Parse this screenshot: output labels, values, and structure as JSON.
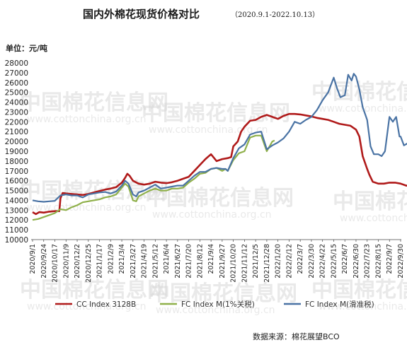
{
  "chart_data": {
    "type": "line",
    "title": "国内外棉花现货价格对比",
    "subtitle": "（2020.9.1-2022.10.13）",
    "unit_label": "单位：元/吨",
    "source": "数据来源：棉花展望BCO",
    "watermark": {
      "text": "中国棉花信息网",
      "url": "www.cottonchina.org.cn"
    },
    "ylim": [
      10000,
      28000
    ],
    "y_ticks": [
      10000,
      11000,
      12000,
      13000,
      14000,
      15000,
      16000,
      17000,
      18000,
      19000,
      20000,
      21000,
      22000,
      23000,
      24000,
      25000,
      26000,
      27000,
      28000
    ],
    "x_ticks": [
      "2020/9/1",
      "2020/9/24",
      "2020/10/17",
      "2020/11/9",
      "2020/12/2",
      "2020/12/25",
      "2021/1/17",
      "2021/2/9",
      "2021/3/4",
      "2021/3/27",
      "2021/4/19",
      "2021/5/12",
      "2021/6/4",
      "2021/6/27",
      "2021/7/20",
      "2021/8/12",
      "2021/9/4",
      "2021/9/27",
      "2021/10/20",
      "2021/11/12",
      "2021/12/5",
      "2021/12/28",
      "2022/1/20",
      "2022/2/12",
      "2022/3/7",
      "2022/3/30",
      "2022/4/22",
      "2022/5/15",
      "2022/6/7",
      "2022/6/30",
      "2022/7/23",
      "2022/8/15",
      "2022/9/7",
      "2022/9/30"
    ],
    "legend_position": "bottom",
    "series": [
      {
        "name": "CC Index 3128B",
        "color": "#b01a1a",
        "points": [
          [
            0,
            12800
          ],
          [
            0.3,
            12600
          ],
          [
            0.6,
            12800
          ],
          [
            1,
            12750
          ],
          [
            1.5,
            12850
          ],
          [
            2,
            12900
          ],
          [
            2.4,
            12900
          ],
          [
            2.5,
            14200
          ],
          [
            2.7,
            14750
          ],
          [
            3,
            14700
          ],
          [
            3.5,
            14650
          ],
          [
            4,
            14600
          ],
          [
            4.5,
            14550
          ],
          [
            5,
            14650
          ],
          [
            5.5,
            14800
          ],
          [
            6,
            14950
          ],
          [
            6.5,
            15100
          ],
          [
            7,
            15200
          ],
          [
            7.5,
            15350
          ],
          [
            8,
            15800
          ],
          [
            8.3,
            16300
          ],
          [
            8.5,
            16700
          ],
          [
            8.7,
            16500
          ],
          [
            9,
            16000
          ],
          [
            9.5,
            15700
          ],
          [
            10,
            15600
          ],
          [
            10.5,
            15700
          ],
          [
            11,
            15900
          ],
          [
            11.5,
            15800
          ],
          [
            12,
            15750
          ],
          [
            12.5,
            15850
          ],
          [
            13,
            16000
          ],
          [
            13.5,
            16200
          ],
          [
            14,
            16400
          ],
          [
            14.5,
            17000
          ],
          [
            15,
            17600
          ],
          [
            15.5,
            18200
          ],
          [
            16,
            18700
          ],
          [
            16.5,
            18000
          ],
          [
            17,
            18200
          ],
          [
            17.5,
            18300
          ],
          [
            17.8,
            18400
          ],
          [
            18,
            19500
          ],
          [
            18.4,
            20000
          ],
          [
            18.7,
            21000
          ],
          [
            19,
            21500
          ],
          [
            19.5,
            22100
          ],
          [
            20,
            22200
          ],
          [
            20.5,
            22500
          ],
          [
            21,
            22700
          ],
          [
            21.5,
            22500
          ],
          [
            22,
            22300
          ],
          [
            22.5,
            22600
          ],
          [
            23,
            22800
          ],
          [
            23.5,
            22800
          ],
          [
            24,
            22750
          ],
          [
            24.5,
            22650
          ],
          [
            25,
            22550
          ],
          [
            25.5,
            22400
          ],
          [
            26,
            22300
          ],
          [
            26.5,
            22200
          ],
          [
            27,
            22000
          ],
          [
            27.5,
            21800
          ],
          [
            28,
            21700
          ],
          [
            28.5,
            21600
          ],
          [
            29,
            21200
          ],
          [
            29.3,
            20500
          ],
          [
            29.6,
            18500
          ],
          [
            30,
            17200
          ],
          [
            30.2,
            16600
          ],
          [
            30.5,
            15900
          ],
          [
            31,
            15700
          ],
          [
            31.5,
            15700
          ],
          [
            32,
            15800
          ],
          [
            32.5,
            15800
          ],
          [
            33,
            15700
          ],
          [
            33.5,
            15500
          ],
          [
            34,
            15450
          ]
        ]
      },
      {
        "name": "FC Index M(1%关税)",
        "color": "#8fb04a",
        "points": [
          [
            0,
            12000
          ],
          [
            0.5,
            12100
          ],
          [
            1,
            12300
          ],
          [
            1.5,
            12500
          ],
          [
            2,
            12700
          ],
          [
            2.5,
            13100
          ],
          [
            3,
            13000
          ],
          [
            3.5,
            13300
          ],
          [
            4,
            13500
          ],
          [
            4.5,
            13800
          ],
          [
            5,
            13900
          ],
          [
            5.5,
            14000
          ],
          [
            6,
            14100
          ],
          [
            6.5,
            14300
          ],
          [
            7,
            14400
          ],
          [
            7.5,
            14600
          ],
          [
            8,
            15300
          ],
          [
            8.3,
            15700
          ],
          [
            8.6,
            15400
          ],
          [
            9,
            14000
          ],
          [
            9.3,
            13900
          ],
          [
            9.5,
            14400
          ],
          [
            10,
            14700
          ],
          [
            10.5,
            15000
          ],
          [
            11,
            15200
          ],
          [
            11.5,
            15000
          ],
          [
            12,
            15000
          ],
          [
            12.5,
            15200
          ],
          [
            13,
            15200
          ],
          [
            13.5,
            15300
          ],
          [
            14,
            15800
          ],
          [
            14.5,
            16200
          ],
          [
            15,
            16700
          ],
          [
            15.5,
            16800
          ],
          [
            16,
            17200
          ],
          [
            16.5,
            17300
          ],
          [
            17,
            17000
          ],
          [
            17.3,
            17200
          ],
          [
            17.5,
            17000
          ],
          [
            18,
            18100
          ],
          [
            18.5,
            18800
          ],
          [
            19,
            19000
          ],
          [
            19.5,
            20400
          ],
          [
            20,
            20600
          ],
          [
            20.5,
            20600
          ],
          [
            21,
            19000
          ],
          [
            21.5,
            20000
          ],
          [
            21.7,
            20100
          ]
        ]
      },
      {
        "name": "FC Index M(滑准税)",
        "color": "#4a73a4",
        "points": [
          [
            0,
            14000
          ],
          [
            0.5,
            13900
          ],
          [
            1,
            13850
          ],
          [
            1.5,
            13900
          ],
          [
            2,
            13950
          ],
          [
            2.5,
            14500
          ],
          [
            3,
            14600
          ],
          [
            3.5,
            14500
          ],
          [
            4,
            14500
          ],
          [
            4.5,
            14300
          ],
          [
            5,
            14600
          ],
          [
            5.5,
            14700
          ],
          [
            6,
            14800
          ],
          [
            6.5,
            14850
          ],
          [
            7,
            14700
          ],
          [
            7.5,
            14900
          ],
          [
            8,
            15500
          ],
          [
            8.3,
            16000
          ],
          [
            8.6,
            15700
          ],
          [
            9,
            14600
          ],
          [
            9.3,
            14400
          ],
          [
            9.5,
            14800
          ],
          [
            10,
            15000
          ],
          [
            10.5,
            15300
          ],
          [
            11,
            15600
          ],
          [
            11.5,
            15200
          ],
          [
            12,
            15300
          ],
          [
            12.5,
            15400
          ],
          [
            13,
            15500
          ],
          [
            13.5,
            15500
          ],
          [
            14,
            16000
          ],
          [
            14.5,
            16500
          ],
          [
            15,
            16900
          ],
          [
            15.5,
            16900
          ],
          [
            16,
            17200
          ],
          [
            16.5,
            17300
          ],
          [
            17,
            17200
          ],
          [
            17.3,
            17200
          ],
          [
            17.5,
            17000
          ],
          [
            18,
            18300
          ],
          [
            18.5,
            19300
          ],
          [
            19,
            19700
          ],
          [
            19.5,
            20700
          ],
          [
            20,
            20900
          ],
          [
            20.5,
            21000
          ],
          [
            21,
            19200
          ],
          [
            21.5,
            19600
          ],
          [
            22,
            19900
          ],
          [
            22.5,
            20300
          ],
          [
            23,
            21000
          ],
          [
            23.5,
            22000
          ],
          [
            24,
            21800
          ],
          [
            24.5,
            22200
          ],
          [
            25,
            22500
          ],
          [
            25.5,
            23200
          ],
          [
            26,
            24200
          ],
          [
            26.5,
            25000
          ],
          [
            27,
            26500
          ],
          [
            27.3,
            25400
          ],
          [
            27.6,
            24500
          ],
          [
            28,
            24700
          ],
          [
            28.3,
            26800
          ],
          [
            28.6,
            26200
          ],
          [
            28.8,
            26900
          ],
          [
            29,
            26600
          ],
          [
            29.3,
            25300
          ],
          [
            29.6,
            23500
          ],
          [
            30,
            22200
          ],
          [
            30.3,
            19500
          ],
          [
            30.6,
            18700
          ],
          [
            31,
            18700
          ],
          [
            31.3,
            18500
          ],
          [
            31.6,
            19000
          ],
          [
            32,
            22500
          ],
          [
            32.3,
            22000
          ],
          [
            32.6,
            22500
          ],
          [
            32.9,
            20500
          ],
          [
            33,
            20500
          ],
          [
            33.3,
            19600
          ],
          [
            33.6,
            19800
          ],
          [
            34,
            18200
          ],
          [
            34.2,
            17400
          ]
        ]
      }
    ]
  }
}
